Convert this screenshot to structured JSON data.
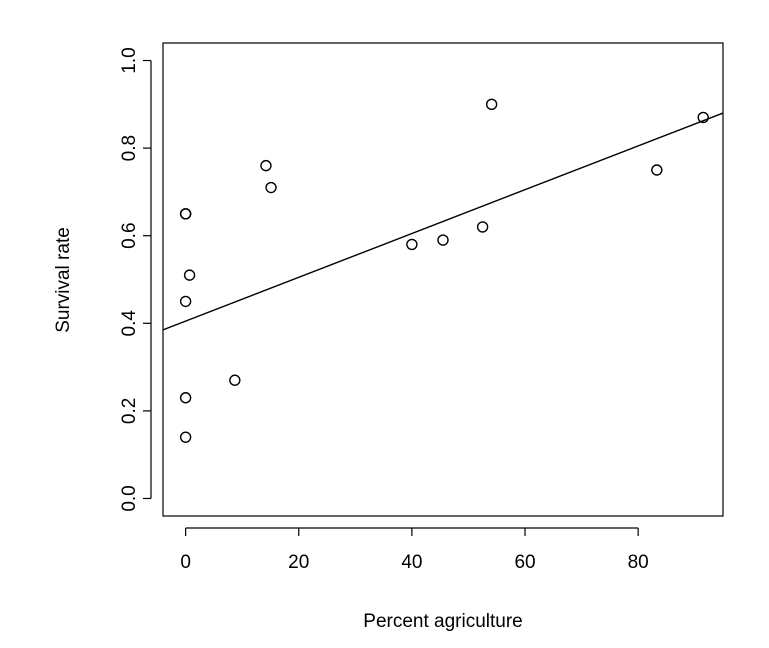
{
  "chart_data": {
    "type": "scatter",
    "title": "",
    "xlabel": "Percent agriculture",
    "ylabel": "Survival rate",
    "xlim": [
      -4,
      95
    ],
    "ylim": [
      -0.04,
      1.04
    ],
    "xticks": [
      0,
      20,
      40,
      60,
      80
    ],
    "xtick_labels": [
      "0",
      "20",
      "40",
      "60",
      "80"
    ],
    "yticks": [
      0.0,
      0.2,
      0.4,
      0.6,
      0.8,
      1.0
    ],
    "ytick_labels": [
      "0.0",
      "0.2",
      "0.4",
      "0.6",
      "0.8",
      "1.0"
    ],
    "grid": false,
    "legend": null,
    "series": [
      {
        "marker": "open-circle",
        "x": [
          0,
          0,
          0,
          0,
          0.7,
          0,
          8.7,
          14.2,
          15.1,
          40.0,
          45.5,
          52.5,
          54.1,
          83.3,
          91.5
        ],
        "y": [
          0.14,
          0.23,
          0.45,
          0.65,
          0.51,
          0.65,
          0.27,
          0.76,
          0.71,
          0.58,
          0.59,
          0.62,
          0.9,
          0.75,
          0.87
        ]
      }
    ],
    "fit_line": {
      "type": "linear",
      "intercept": 0.405,
      "slope": 0.005
    },
    "color": "#000000"
  }
}
